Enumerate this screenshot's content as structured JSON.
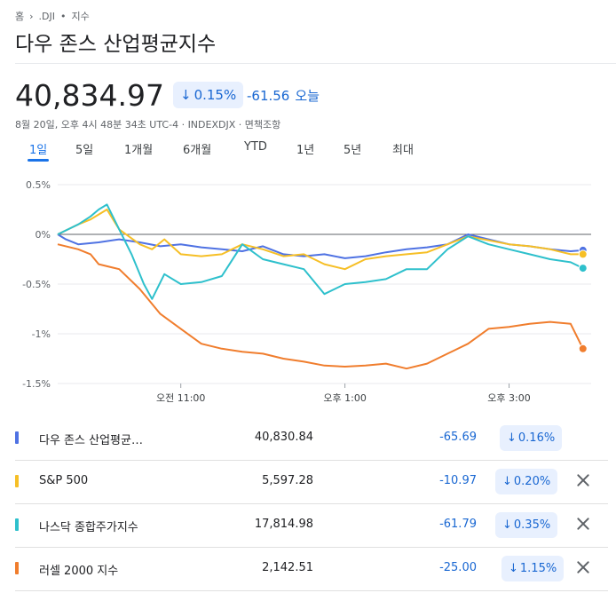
{
  "breadcrumb": {
    "home": "홈",
    "ticker": ".DJI",
    "separator": "•",
    "type": "지수"
  },
  "title": "다우 존스 산업평균지수",
  "quote": {
    "price": "40,834.97",
    "percent": "0.15%",
    "change": "-61.56",
    "change_label": "오늘",
    "timestamp": "8월 20일, 오후 4시 48분 34초 UTC-4 · INDEXDJX · 면책조항"
  },
  "range_tabs": [
    {
      "label": "1일",
      "active": true
    },
    {
      "label": "5일"
    },
    {
      "label": "1개월"
    },
    {
      "label": "6개월"
    },
    {
      "label": "YTD"
    },
    {
      "label": "1년"
    },
    {
      "label": "5년"
    },
    {
      "label": "최대"
    }
  ],
  "chart_data": {
    "type": "line",
    "y_ticks": [
      "0.5%",
      "0%",
      "-0.5%",
      "-1%",
      "-1.5%"
    ],
    "y_tick_values": [
      0.5,
      0,
      -0.5,
      -1,
      -1.5
    ],
    "ylim": [
      -1.5,
      0.5
    ],
    "x_ticks": [
      {
        "label": "오전 11:00",
        "hour": 11
      },
      {
        "label": "오후 1:00",
        "hour": 13
      },
      {
        "label": "오후 3:00",
        "hour": 15
      }
    ],
    "xlim": [
      9.5,
      16.0
    ],
    "baseline": 0,
    "grid": "horizontal",
    "series": [
      {
        "name": "다우 존스 산업평균지수",
        "color": "#4f72e3",
        "points": [
          [
            9.5,
            0.0
          ],
          [
            9.6,
            -0.05
          ],
          [
            9.75,
            -0.1
          ],
          [
            10.0,
            -0.08
          ],
          [
            10.25,
            -0.05
          ],
          [
            10.5,
            -0.08
          ],
          [
            10.75,
            -0.12
          ],
          [
            11.0,
            -0.1
          ],
          [
            11.25,
            -0.13
          ],
          [
            11.5,
            -0.15
          ],
          [
            11.75,
            -0.17
          ],
          [
            12.0,
            -0.12
          ],
          [
            12.25,
            -0.2
          ],
          [
            12.5,
            -0.22
          ],
          [
            12.75,
            -0.2
          ],
          [
            13.0,
            -0.24
          ],
          [
            13.25,
            -0.22
          ],
          [
            13.5,
            -0.18
          ],
          [
            13.75,
            -0.15
          ],
          [
            14.0,
            -0.13
          ],
          [
            14.25,
            -0.1
          ],
          [
            14.5,
            0.0
          ],
          [
            14.75,
            -0.05
          ],
          [
            15.0,
            -0.1
          ],
          [
            15.25,
            -0.12
          ],
          [
            15.5,
            -0.15
          ],
          [
            15.75,
            -0.17
          ],
          [
            15.9,
            -0.16
          ]
        ]
      },
      {
        "name": "S&P 500",
        "color": "#f6bf26",
        "points": [
          [
            9.5,
            0.0
          ],
          [
            9.75,
            0.1
          ],
          [
            9.9,
            0.15
          ],
          [
            10.0,
            0.2
          ],
          [
            10.1,
            0.25
          ],
          [
            10.25,
            0.05
          ],
          [
            10.5,
            -0.1
          ],
          [
            10.65,
            -0.15
          ],
          [
            10.8,
            -0.05
          ],
          [
            11.0,
            -0.2
          ],
          [
            11.25,
            -0.22
          ],
          [
            11.5,
            -0.2
          ],
          [
            11.75,
            -0.1
          ],
          [
            12.0,
            -0.15
          ],
          [
            12.25,
            -0.22
          ],
          [
            12.5,
            -0.2
          ],
          [
            12.75,
            -0.3
          ],
          [
            13.0,
            -0.35
          ],
          [
            13.25,
            -0.25
          ],
          [
            13.5,
            -0.22
          ],
          [
            13.75,
            -0.2
          ],
          [
            14.0,
            -0.18
          ],
          [
            14.25,
            -0.1
          ],
          [
            14.5,
            -0.02
          ],
          [
            14.75,
            -0.06
          ],
          [
            15.0,
            -0.1
          ],
          [
            15.25,
            -0.12
          ],
          [
            15.5,
            -0.15
          ],
          [
            15.75,
            -0.2
          ],
          [
            15.9,
            -0.2
          ]
        ]
      },
      {
        "name": "나스닥 종합주가지수",
        "color": "#2ec0cc",
        "points": [
          [
            9.5,
            0.0
          ],
          [
            9.75,
            0.1
          ],
          [
            9.9,
            0.18
          ],
          [
            10.0,
            0.25
          ],
          [
            10.1,
            0.3
          ],
          [
            10.25,
            0.05
          ],
          [
            10.4,
            -0.2
          ],
          [
            10.55,
            -0.5
          ],
          [
            10.65,
            -0.65
          ],
          [
            10.8,
            -0.4
          ],
          [
            11.0,
            -0.5
          ],
          [
            11.25,
            -0.48
          ],
          [
            11.5,
            -0.42
          ],
          [
            11.75,
            -0.1
          ],
          [
            12.0,
            -0.25
          ],
          [
            12.25,
            -0.3
          ],
          [
            12.5,
            -0.35
          ],
          [
            12.75,
            -0.6
          ],
          [
            13.0,
            -0.5
          ],
          [
            13.25,
            -0.48
          ],
          [
            13.5,
            -0.45
          ],
          [
            13.75,
            -0.35
          ],
          [
            14.0,
            -0.35
          ],
          [
            14.25,
            -0.15
          ],
          [
            14.5,
            -0.02
          ],
          [
            14.75,
            -0.1
          ],
          [
            15.0,
            -0.15
          ],
          [
            15.25,
            -0.2
          ],
          [
            15.5,
            -0.25
          ],
          [
            15.75,
            -0.28
          ],
          [
            15.9,
            -0.34
          ]
        ]
      },
      {
        "name": "러셀 2000 지수",
        "color": "#f07d2d",
        "points": [
          [
            9.5,
            -0.1
          ],
          [
            9.75,
            -0.15
          ],
          [
            9.9,
            -0.2
          ],
          [
            10.0,
            -0.3
          ],
          [
            10.25,
            -0.35
          ],
          [
            10.5,
            -0.55
          ],
          [
            10.75,
            -0.8
          ],
          [
            11.0,
            -0.95
          ],
          [
            11.25,
            -1.1
          ],
          [
            11.5,
            -1.15
          ],
          [
            11.75,
            -1.18
          ],
          [
            12.0,
            -1.2
          ],
          [
            12.25,
            -1.25
          ],
          [
            12.5,
            -1.28
          ],
          [
            12.75,
            -1.32
          ],
          [
            13.0,
            -1.33
          ],
          [
            13.25,
            -1.32
          ],
          [
            13.5,
            -1.3
          ],
          [
            13.75,
            -1.35
          ],
          [
            14.0,
            -1.3
          ],
          [
            14.25,
            -1.2
          ],
          [
            14.5,
            -1.1
          ],
          [
            14.75,
            -0.95
          ],
          [
            15.0,
            -0.93
          ],
          [
            15.25,
            -0.9
          ],
          [
            15.5,
            -0.88
          ],
          [
            15.75,
            -0.9
          ],
          [
            15.9,
            -1.15
          ]
        ]
      }
    ]
  },
  "comparison": [
    {
      "name": "다우 존스 산업평균…",
      "value": "40,830.84",
      "change": "-65.69",
      "percent": "0.16%",
      "color": "#4f72e3",
      "removable": false
    },
    {
      "name": "S&P 500",
      "value": "5,597.28",
      "change": "-10.97",
      "percent": "0.20%",
      "color": "#f6bf26",
      "removable": true
    },
    {
      "name": "나스닥 종합주가지수",
      "value": "17,814.98",
      "change": "-61.79",
      "percent": "0.35%",
      "color": "#2ec0cc",
      "removable": true
    },
    {
      "name": "러셀 2000 지수",
      "value": "2,142.51",
      "change": "-25.00",
      "percent": "1.15%",
      "color": "#f07d2d",
      "removable": true
    }
  ],
  "icons": {
    "breadcrumb_chevron": "chevron-right-icon",
    "down": "arrow-down-icon",
    "close": "close-icon"
  }
}
